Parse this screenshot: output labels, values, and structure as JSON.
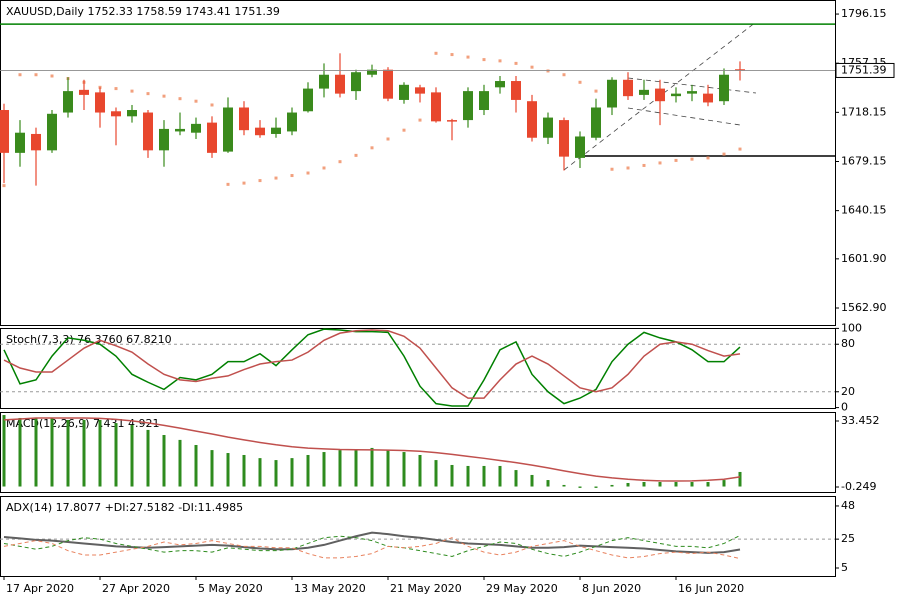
{
  "chart_data": [
    {
      "type": "candlestick",
      "title": "XAUUSD,Daily  1752.33 1758.59 1743.41 1751.39",
      "categories": [
        "17 Apr 2020",
        null,
        null,
        null,
        null,
        null,
        "27 Apr 2020",
        null,
        null,
        null,
        null,
        null,
        "5 May 2020",
        null,
        null,
        null,
        null,
        null,
        "13 May 2020",
        null,
        null,
        null,
        null,
        null,
        "21 May 2020",
        null,
        null,
        null,
        null,
        null,
        "29 May 2020",
        null,
        null,
        null,
        null,
        null,
        "8 Jun 2020",
        null,
        null,
        null,
        null,
        null,
        "16 Jun 2020",
        null,
        null,
        null,
        null
      ],
      "open": [
        1720,
        1686,
        1701,
        1688,
        1718,
        1736,
        1734,
        1719,
        1715,
        1718,
        1688,
        1703,
        1702,
        1710,
        1687,
        1722,
        1706,
        1701,
        1703,
        1719,
        1737,
        1748,
        1735,
        1748,
        1752,
        1728,
        1738,
        1734,
        1712,
        1712,
        1720,
        1738,
        1743,
        1727,
        1698,
        1712,
        1682,
        1698,
        1722,
        1744,
        1732,
        1737,
        1731,
        1733,
        1733,
        1727,
        1752.33
      ],
      "high": [
        1725,
        1712,
        1706,
        1720,
        1746,
        1744,
        1738,
        1722,
        1724,
        1720,
        1712,
        1718,
        1714,
        1715,
        1730,
        1727,
        1712,
        1714,
        1722,
        1742,
        1757,
        1765,
        1752,
        1756,
        1754,
        1742,
        1740,
        1738,
        1713,
        1738,
        1740,
        1747,
        1747,
        1732,
        1718,
        1714,
        1703,
        1729,
        1746,
        1750,
        1744,
        1744,
        1738,
        1740,
        1740,
        1753,
        1758.59
      ],
      "low": [
        1662,
        1675,
        1660,
        1686,
        1714,
        1720,
        1706,
        1692,
        1710,
        1682,
        1675,
        1700,
        1697,
        1682,
        1686,
        1700,
        1698,
        1698,
        1700,
        1718,
        1730,
        1730,
        1728,
        1746,
        1727,
        1725,
        1726,
        1710,
        1696,
        1706,
        1716,
        1733,
        1718,
        1695,
        1693,
        1672,
        1674,
        1696,
        1716,
        1728,
        1728,
        1708,
        1726,
        1727,
        1723,
        1724,
        1743.41
      ],
      "close": [
        1686,
        1702,
        1688,
        1717,
        1735,
        1732,
        1718,
        1715,
        1720,
        1688,
        1705,
        1705,
        1709,
        1686,
        1722,
        1704,
        1700,
        1706,
        1718,
        1737,
        1748,
        1733,
        1750,
        1752,
        1729,
        1740,
        1733,
        1711,
        1711,
        1735,
        1735,
        1743,
        1728,
        1698,
        1714,
        1683,
        1699,
        1722,
        1744,
        1731,
        1736,
        1727,
        1733,
        1735,
        1726,
        1748,
        1751.39
      ],
      "up_color": "#3a8a1c",
      "down_color": "#e8472e",
      "sar": {
        "color": "#f2a07e",
        "values": [
          1660,
          1748,
          1748,
          1747,
          1745,
          1742,
          1738,
          1737,
          1735,
          1733,
          1731,
          1729,
          1727,
          1724,
          1661,
          1662,
          1664,
          1666,
          1668,
          1670,
          1674,
          1679,
          1684,
          1690,
          1697,
          1704,
          1712,
          1765,
          1764,
          1762,
          1760,
          1759,
          1757,
          1754,
          1751,
          1748,
          1742,
          1735,
          1673,
          1674,
          1676,
          1678,
          1680,
          1681,
          1682,
          1685,
          1689
        ]
      },
      "levels": [
        {
          "value": 1788.2,
          "color": "#008000"
        },
        {
          "value": 1683.5,
          "color": "#000000"
        }
      ],
      "current_price": 1751.39,
      "ylim": [
        1549.4,
        1807.3
      ],
      "yticks": [
        1796.15,
        1757.15,
        1718.15,
        1679.15,
        1640.15,
        {
          "value": 1601.9,
          "label": "1601.90"
        },
        {
          "value": 1562.9,
          "label": "1562.90"
        }
      ]
    },
    {
      "type": "line",
      "title": "Stoch(7,3,3) 76.3760 67.8210",
      "series": [
        {
          "color": "#008000",
          "values": [
            73,
            30,
            35,
            65,
            88,
            85,
            80,
            65,
            42,
            32,
            23,
            38,
            35,
            42,
            58,
            58,
            68,
            53,
            73,
            92,
            99,
            98,
            96,
            96,
            95,
            65,
            27,
            5,
            2,
            2,
            35,
            73,
            83,
            42,
            20,
            5,
            12,
            23,
            58,
            80,
            95,
            88,
            83,
            73,
            58,
            58,
            76.376
          ]
        },
        {
          "color": "#c0504d",
          "values": [
            60,
            50,
            45,
            45,
            60,
            75,
            85,
            78,
            70,
            55,
            42,
            35,
            33,
            37,
            40,
            48,
            55,
            58,
            60,
            70,
            85,
            94,
            97,
            98,
            97,
            90,
            75,
            50,
            25,
            12,
            12,
            35,
            55,
            65,
            55,
            40,
            25,
            20,
            25,
            42,
            65,
            80,
            83,
            80,
            72,
            65,
            67.821
          ]
        }
      ],
      "levels": [
        80,
        20
      ],
      "ylim": [
        -0.5,
        100.5
      ],
      "yticks": [
        100,
        80,
        20,
        0
      ]
    },
    {
      "type": "macd",
      "title": "MACD(12,26,9) 7.431 4.921",
      "series": [
        {
          "type": "bar",
          "color": "#2e8b1e",
          "values": [
            36.5,
            35,
            35,
            35,
            34,
            34,
            34,
            32.4,
            31.4,
            28.9,
            26.3,
            23.8,
            21.2,
            18.6,
            17.1,
            16.1,
            14.5,
            13.5,
            14.5,
            16.1,
            17.6,
            18.6,
            18.6,
            19.7,
            18.6,
            17.6,
            16.1,
            13.5,
            11,
            10.5,
            10.5,
            10.5,
            8.4,
            5.9,
            3.3,
            0.8,
            -0.7,
            -0.7,
            0.8,
            1.8,
            2.3,
            2.3,
            2.3,
            2.3,
            2.3,
            3.3,
            7.431
          ]
        },
        {
          "type": "line",
          "color": "#c0504d",
          "values": [
            34,
            34.5,
            35,
            35,
            35,
            35,
            34.8,
            34.3,
            33.5,
            32.5,
            31.2,
            29.8,
            28.3,
            26.8,
            25.2,
            23.8,
            22.5,
            21.3,
            20.3,
            19.6,
            19.2,
            18.9,
            18.8,
            18.7,
            18.6,
            18.4,
            18,
            17.3,
            16.4,
            15.4,
            14.4,
            13.3,
            12.2,
            10.9,
            9.5,
            8,
            6.6,
            5.3,
            4.4,
            3.7,
            3.2,
            2.9,
            2.8,
            2.9,
            3.2,
            3.7,
            4.921
          ]
        }
      ],
      "ylim": [
        -2.8,
        38.05
      ],
      "yticks": [
        33.452,
        -0.249
      ]
    },
    {
      "type": "line",
      "title": "ADX(14) 17.8077 +DI:27.5182 -DI:11.4985",
      "series": [
        {
          "color": "#606060",
          "width": 2,
          "dashed": false,
          "values": [
            26.5,
            25.5,
            24.5,
            24,
            23,
            22,
            21,
            20,
            19.5,
            19,
            19.5,
            20,
            20.5,
            21,
            20.5,
            19.5,
            18.5,
            18,
            18,
            19,
            21,
            24,
            27,
            29.5,
            28.5,
            27,
            26,
            24.5,
            23,
            22,
            21.5,
            21,
            20,
            19,
            19,
            19.5,
            20.5,
            20,
            19.5,
            19,
            18.5,
            17.5,
            16.5,
            16,
            15.5,
            16,
            17.8077
          ]
        },
        {
          "color": "#2e8b1e",
          "width": 1,
          "dashed": true,
          "values": [
            22,
            20,
            18,
            20,
            24,
            26,
            25,
            22,
            20,
            18,
            16,
            17,
            17,
            16,
            19,
            18,
            17,
            17,
            18,
            22,
            26,
            27,
            26,
            24,
            20,
            19,
            17,
            15,
            13,
            17,
            20,
            23,
            22,
            18,
            15,
            13,
            16,
            20,
            24,
            26,
            24,
            22,
            20,
            20,
            19,
            22,
            27.5182
          ]
        },
        {
          "color": "#e8825e",
          "width": 1,
          "dashed": true,
          "values": [
            20,
            22,
            24,
            22,
            17,
            14,
            14,
            16,
            18,
            20,
            23,
            21,
            22,
            24,
            22,
            20,
            20,
            19,
            19,
            15,
            12,
            12,
            13,
            15,
            20,
            19,
            20,
            22,
            26,
            20,
            16,
            14,
            16,
            20,
            22,
            24,
            20,
            17,
            14,
            12,
            13,
            15,
            16,
            15,
            16,
            14,
            11.4985
          ]
        }
      ],
      "levels": [
        25
      ],
      "ylim": [
        -0.55,
        54.9
      ],
      "yticks": [
        48,
        25,
        5
      ]
    }
  ]
}
